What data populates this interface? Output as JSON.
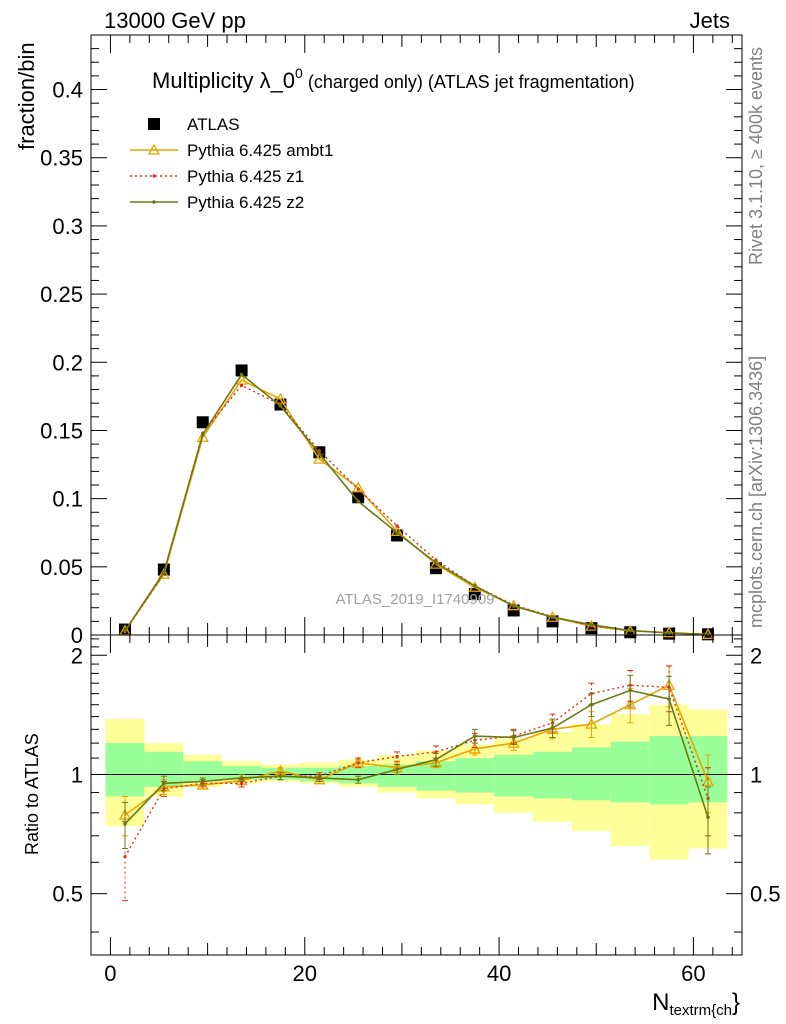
{
  "header": {
    "left": "13000 GeV pp",
    "right": "Jets"
  },
  "side": {
    "rivet": "Rivet 3.1.10, ≥ 400k events",
    "mcplots": "mcplots.cern.ch [arXiv:1306.3436]"
  },
  "colors": {
    "data": "#000000",
    "ambt1": "#e8a400",
    "z1": "#e03010",
    "z2": "#6b7a10",
    "band_inner": "#99ff99",
    "band_outer": "#ffff99",
    "watermark": "#a0a0a0"
  },
  "chart_data": {
    "type": "line",
    "title_main": "Multiplicity λ_0",
    "title_sup": "0",
    "title_rest": " (charged only) (ATLAS jet fragmentation)",
    "watermark": "ATLAS_2019_I1740909",
    "xlabel_main": "N",
    "xlabel_sub": "textrm{ch",
    "xlabel_end": "}",
    "ylabel": "fraction/bin",
    "ratio_ylabel": "Ratio to ATLAS",
    "xlim": [
      -2,
      65
    ],
    "ylim": [
      0,
      0.44
    ],
    "ratio_ylim": [
      0.35,
      2.25
    ],
    "x_ticks": [
      0,
      20,
      40,
      60
    ],
    "x_tick_labels": [
      "0",
      "20",
      "40",
      "60"
    ],
    "y_ticks": [
      0,
      0.05,
      0.1,
      0.15,
      0.2,
      0.25,
      0.3,
      0.35,
      0.4
    ],
    "y_tick_labels": [
      "0",
      "0.05",
      "0.1",
      "0.15",
      "0.2",
      "0.25",
      "0.3",
      "0.35",
      "0.4"
    ],
    "ratio_ticks": [
      0.5,
      1,
      2
    ],
    "ratio_tick_labels": [
      "0.5",
      "1",
      "2"
    ],
    "x": [
      1.5,
      5.5,
      9.5,
      13.5,
      17.5,
      21.5,
      25.5,
      29.5,
      33.5,
      37.5,
      41.5,
      45.5,
      49.5,
      53.5,
      57.5,
      61.5
    ],
    "bin_edges": [
      -0.5,
      3.5,
      7.5,
      11.5,
      15.5,
      19.5,
      23.5,
      27.5,
      31.5,
      35.5,
      39.5,
      43.5,
      47.5,
      51.5,
      55.5,
      59.5,
      63.5
    ],
    "data": {
      "name": "ATLAS",
      "values": [
        0.004,
        0.048,
        0.156,
        0.194,
        0.169,
        0.134,
        0.101,
        0.073,
        0.049,
        0.03,
        0.018,
        0.01,
        0.005,
        0.002,
        0.001,
        0.0005
      ]
    },
    "band": {
      "inner_low": [
        0.88,
        0.93,
        0.96,
        0.97,
        0.97,
        0.96,
        0.95,
        0.93,
        0.91,
        0.9,
        0.88,
        0.87,
        0.86,
        0.85,
        0.84,
        0.85
      ],
      "inner_high": [
        1.2,
        1.14,
        1.08,
        1.05,
        1.04,
        1.04,
        1.05,
        1.06,
        1.08,
        1.1,
        1.12,
        1.14,
        1.17,
        1.21,
        1.25,
        1.25
      ],
      "outer_low": [
        0.74,
        0.88,
        0.93,
        0.95,
        0.96,
        0.95,
        0.93,
        0.9,
        0.87,
        0.84,
        0.8,
        0.76,
        0.72,
        0.66,
        0.61,
        0.65
      ],
      "outer_high": [
        1.38,
        1.2,
        1.12,
        1.08,
        1.06,
        1.07,
        1.09,
        1.12,
        1.15,
        1.19,
        1.23,
        1.28,
        1.34,
        1.42,
        1.5,
        1.46
      ]
    },
    "series": [
      {
        "name": "Pythia 6.425 ambt1",
        "key": "ambt1",
        "values": [
          0.0031,
          0.0446,
          0.145,
          0.187,
          0.173,
          0.129,
          0.108,
          0.076,
          0.052,
          0.035,
          0.0215,
          0.013,
          0.0065,
          0.003,
          0.0017,
          0.0005
        ],
        "ratio": [
          0.79,
          0.93,
          0.94,
          0.965,
          1.02,
          0.97,
          1.07,
          1.04,
          1.07,
          1.16,
          1.2,
          1.3,
          1.34,
          1.5,
          1.68,
          0.96
        ],
        "ratio_err": [
          0.09,
          0.04,
          0.02,
          0.02,
          0.02,
          0.02,
          0.02,
          0.03,
          0.03,
          0.04,
          0.05,
          0.07,
          0.1,
          0.15,
          0.2,
          0.16
        ]
      },
      {
        "name": "Pythia 6.425 z1",
        "key": "z1",
        "values": [
          0.0024,
          0.0451,
          0.148,
          0.183,
          0.169,
          0.135,
          0.107,
          0.08,
          0.055,
          0.036,
          0.022,
          0.0135,
          0.0067,
          0.0033,
          0.0017,
          0.0004
        ],
        "ratio": [
          0.62,
          0.92,
          0.95,
          0.95,
          0.99,
          0.99,
          1.07,
          1.11,
          1.14,
          1.22,
          1.25,
          1.35,
          1.6,
          1.68,
          1.66,
          0.87
        ],
        "ratio_err": [
          0.14,
          0.04,
          0.02,
          0.02,
          0.02,
          0.02,
          0.03,
          0.03,
          0.04,
          0.05,
          0.05,
          0.07,
          0.1,
          0.15,
          0.22,
          0.17
        ]
      },
      {
        "name": "Pythia 6.425 z2",
        "key": "z2",
        "values": [
          0.003,
          0.046,
          0.147,
          0.191,
          0.168,
          0.133,
          0.098,
          0.075,
          0.053,
          0.036,
          0.0213,
          0.0131,
          0.0075,
          0.0033,
          0.0015,
          0.0004
        ],
        "ratio": [
          0.75,
          0.95,
          0.96,
          0.98,
          0.99,
          0.98,
          0.97,
          1.03,
          1.09,
          1.25,
          1.24,
          1.31,
          1.5,
          1.63,
          1.55,
          0.78
        ],
        "ratio_err": [
          0.1,
          0.04,
          0.02,
          0.02,
          0.02,
          0.02,
          0.02,
          0.03,
          0.04,
          0.05,
          0.05,
          0.07,
          0.1,
          0.15,
          0.22,
          0.15
        ]
      }
    ]
  }
}
